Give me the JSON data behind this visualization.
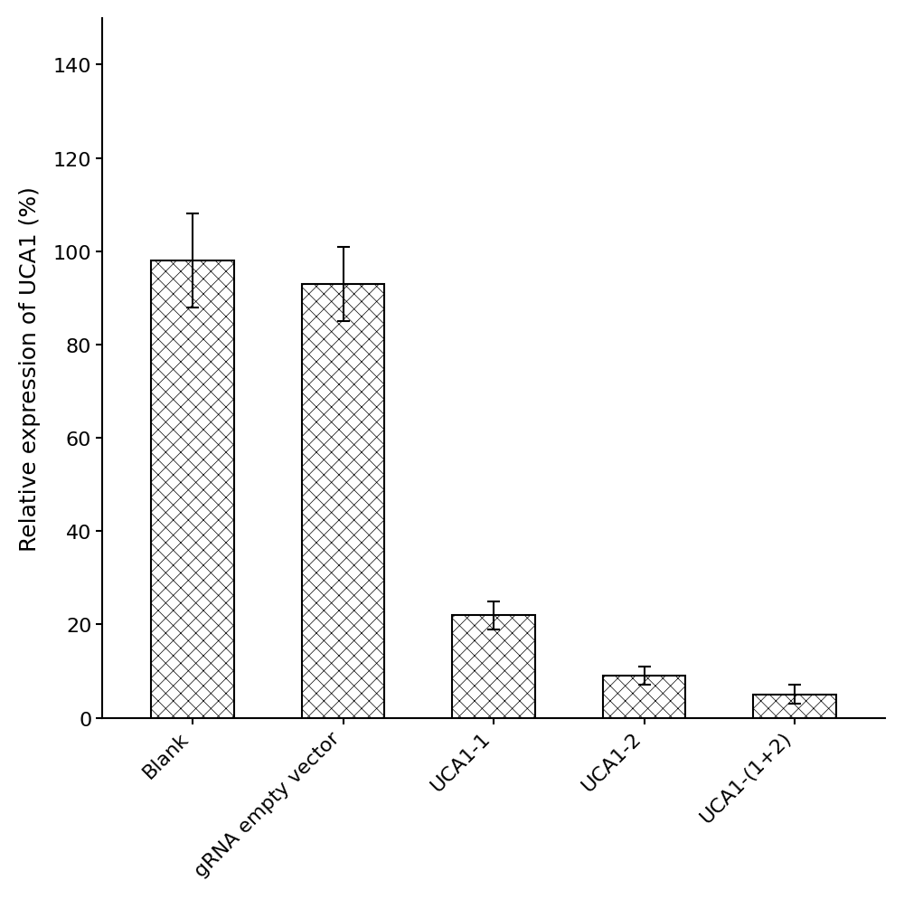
{
  "categories": [
    "Blank",
    "gRNA empty vector",
    "UCA1-1",
    "UCA1-2",
    "UCA1-(1+2)"
  ],
  "values": [
    98,
    93,
    22,
    9,
    5
  ],
  "errors": [
    10,
    8,
    3,
    2,
    2
  ],
  "ylabel": "Relative expression of UCA1 (%)",
  "ylim": [
    0,
    150
  ],
  "yticks": [
    0,
    20,
    40,
    60,
    80,
    100,
    120,
    140
  ],
  "background_color": "#ffffff",
  "bar_width": 0.55,
  "tick_fontsize": 16,
  "ylabel_fontsize": 18
}
